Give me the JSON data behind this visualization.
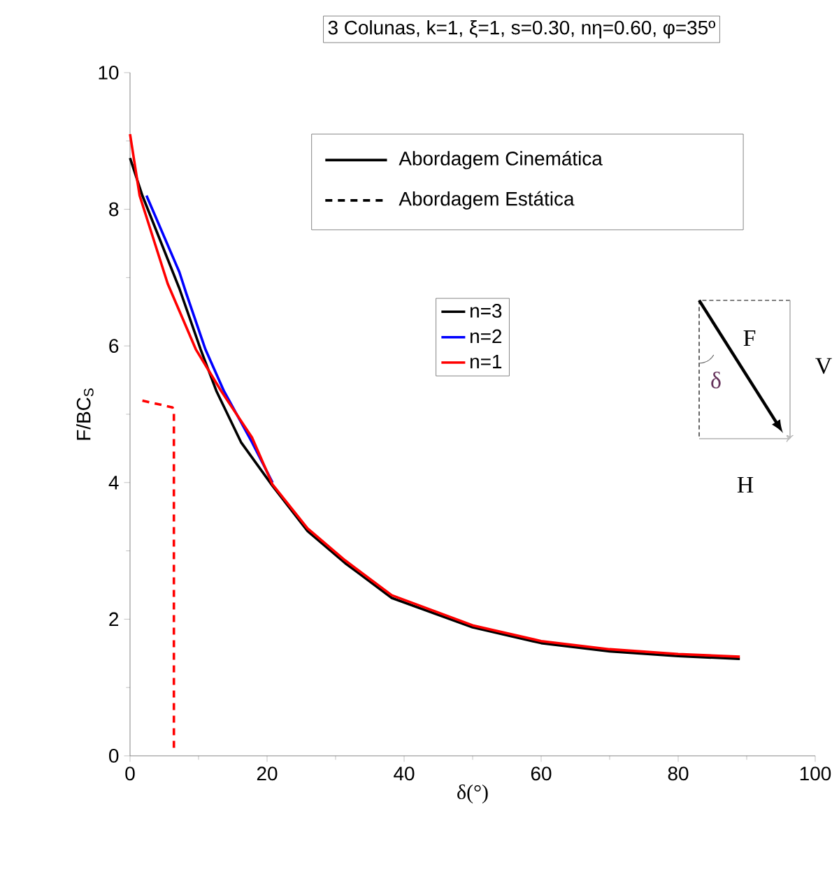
{
  "chart_data": {
    "type": "line",
    "title": "3 Colunas, k=1, ξ=1, s=0.30, nη=0.60, φ=35º",
    "xlabel": "δ(°)",
    "ylabel": "F/BC$_{S}$",
    "xlim": [
      0,
      100
    ],
    "ylim": [
      0,
      10
    ],
    "xticks": [
      0,
      20,
      40,
      60,
      80,
      100
    ],
    "yticks": [
      0,
      2,
      4,
      6,
      8,
      10
    ],
    "grid": false,
    "legend": "top",
    "marker": "none",
    "annotations": [
      "Abordagem Cinemática",
      "Abordagem Estática",
      "F",
      "δ",
      "V",
      "H"
    ],
    "series": [
      {
        "name": "n=3",
        "color": "#000000",
        "line_style": "solid",
        "x": [
          0,
          1.8,
          7.2,
          10.3,
          12.6,
          16.2,
          20.8,
          25.9,
          31.4,
          38.2,
          50,
          60,
          70,
          80,
          89
        ],
        "values": [
          8.75,
          8.2,
          6.84,
          5.95,
          5.34,
          4.59,
          3.95,
          3.29,
          2.82,
          2.31,
          1.88,
          1.65,
          1.53,
          1.46,
          1.42
        ]
      },
      {
        "name": "n=2",
        "color": "#0000ff",
        "line_style": "solid",
        "x": [
          2.4,
          7.2,
          8.2,
          11.0,
          13.7,
          17.8,
          20.8
        ],
        "values": [
          8.2,
          7.08,
          6.77,
          5.95,
          5.34,
          4.59,
          4.0
        ]
      },
      {
        "name": "n=1",
        "color": "#ff0000",
        "line_style": "solid",
        "x": [
          0,
          1.4,
          5.5,
          9.6,
          13.3,
          17.8,
          20.8,
          25.9,
          31.4,
          38.2,
          50,
          60,
          70,
          80,
          89
        ],
        "values": [
          9.1,
          8.2,
          6.91,
          5.95,
          5.34,
          4.66,
          3.97,
          3.33,
          2.86,
          2.35,
          1.91,
          1.68,
          1.56,
          1.49,
          1.45
        ]
      },
      {
        "color": "#ff0000",
        "line_style": "dashed",
        "x": [
          1.8,
          6.2,
          6.4,
          6.4
        ],
        "values": [
          5.2,
          5.1,
          5.05,
          0.09
        ]
      }
    ]
  }
}
